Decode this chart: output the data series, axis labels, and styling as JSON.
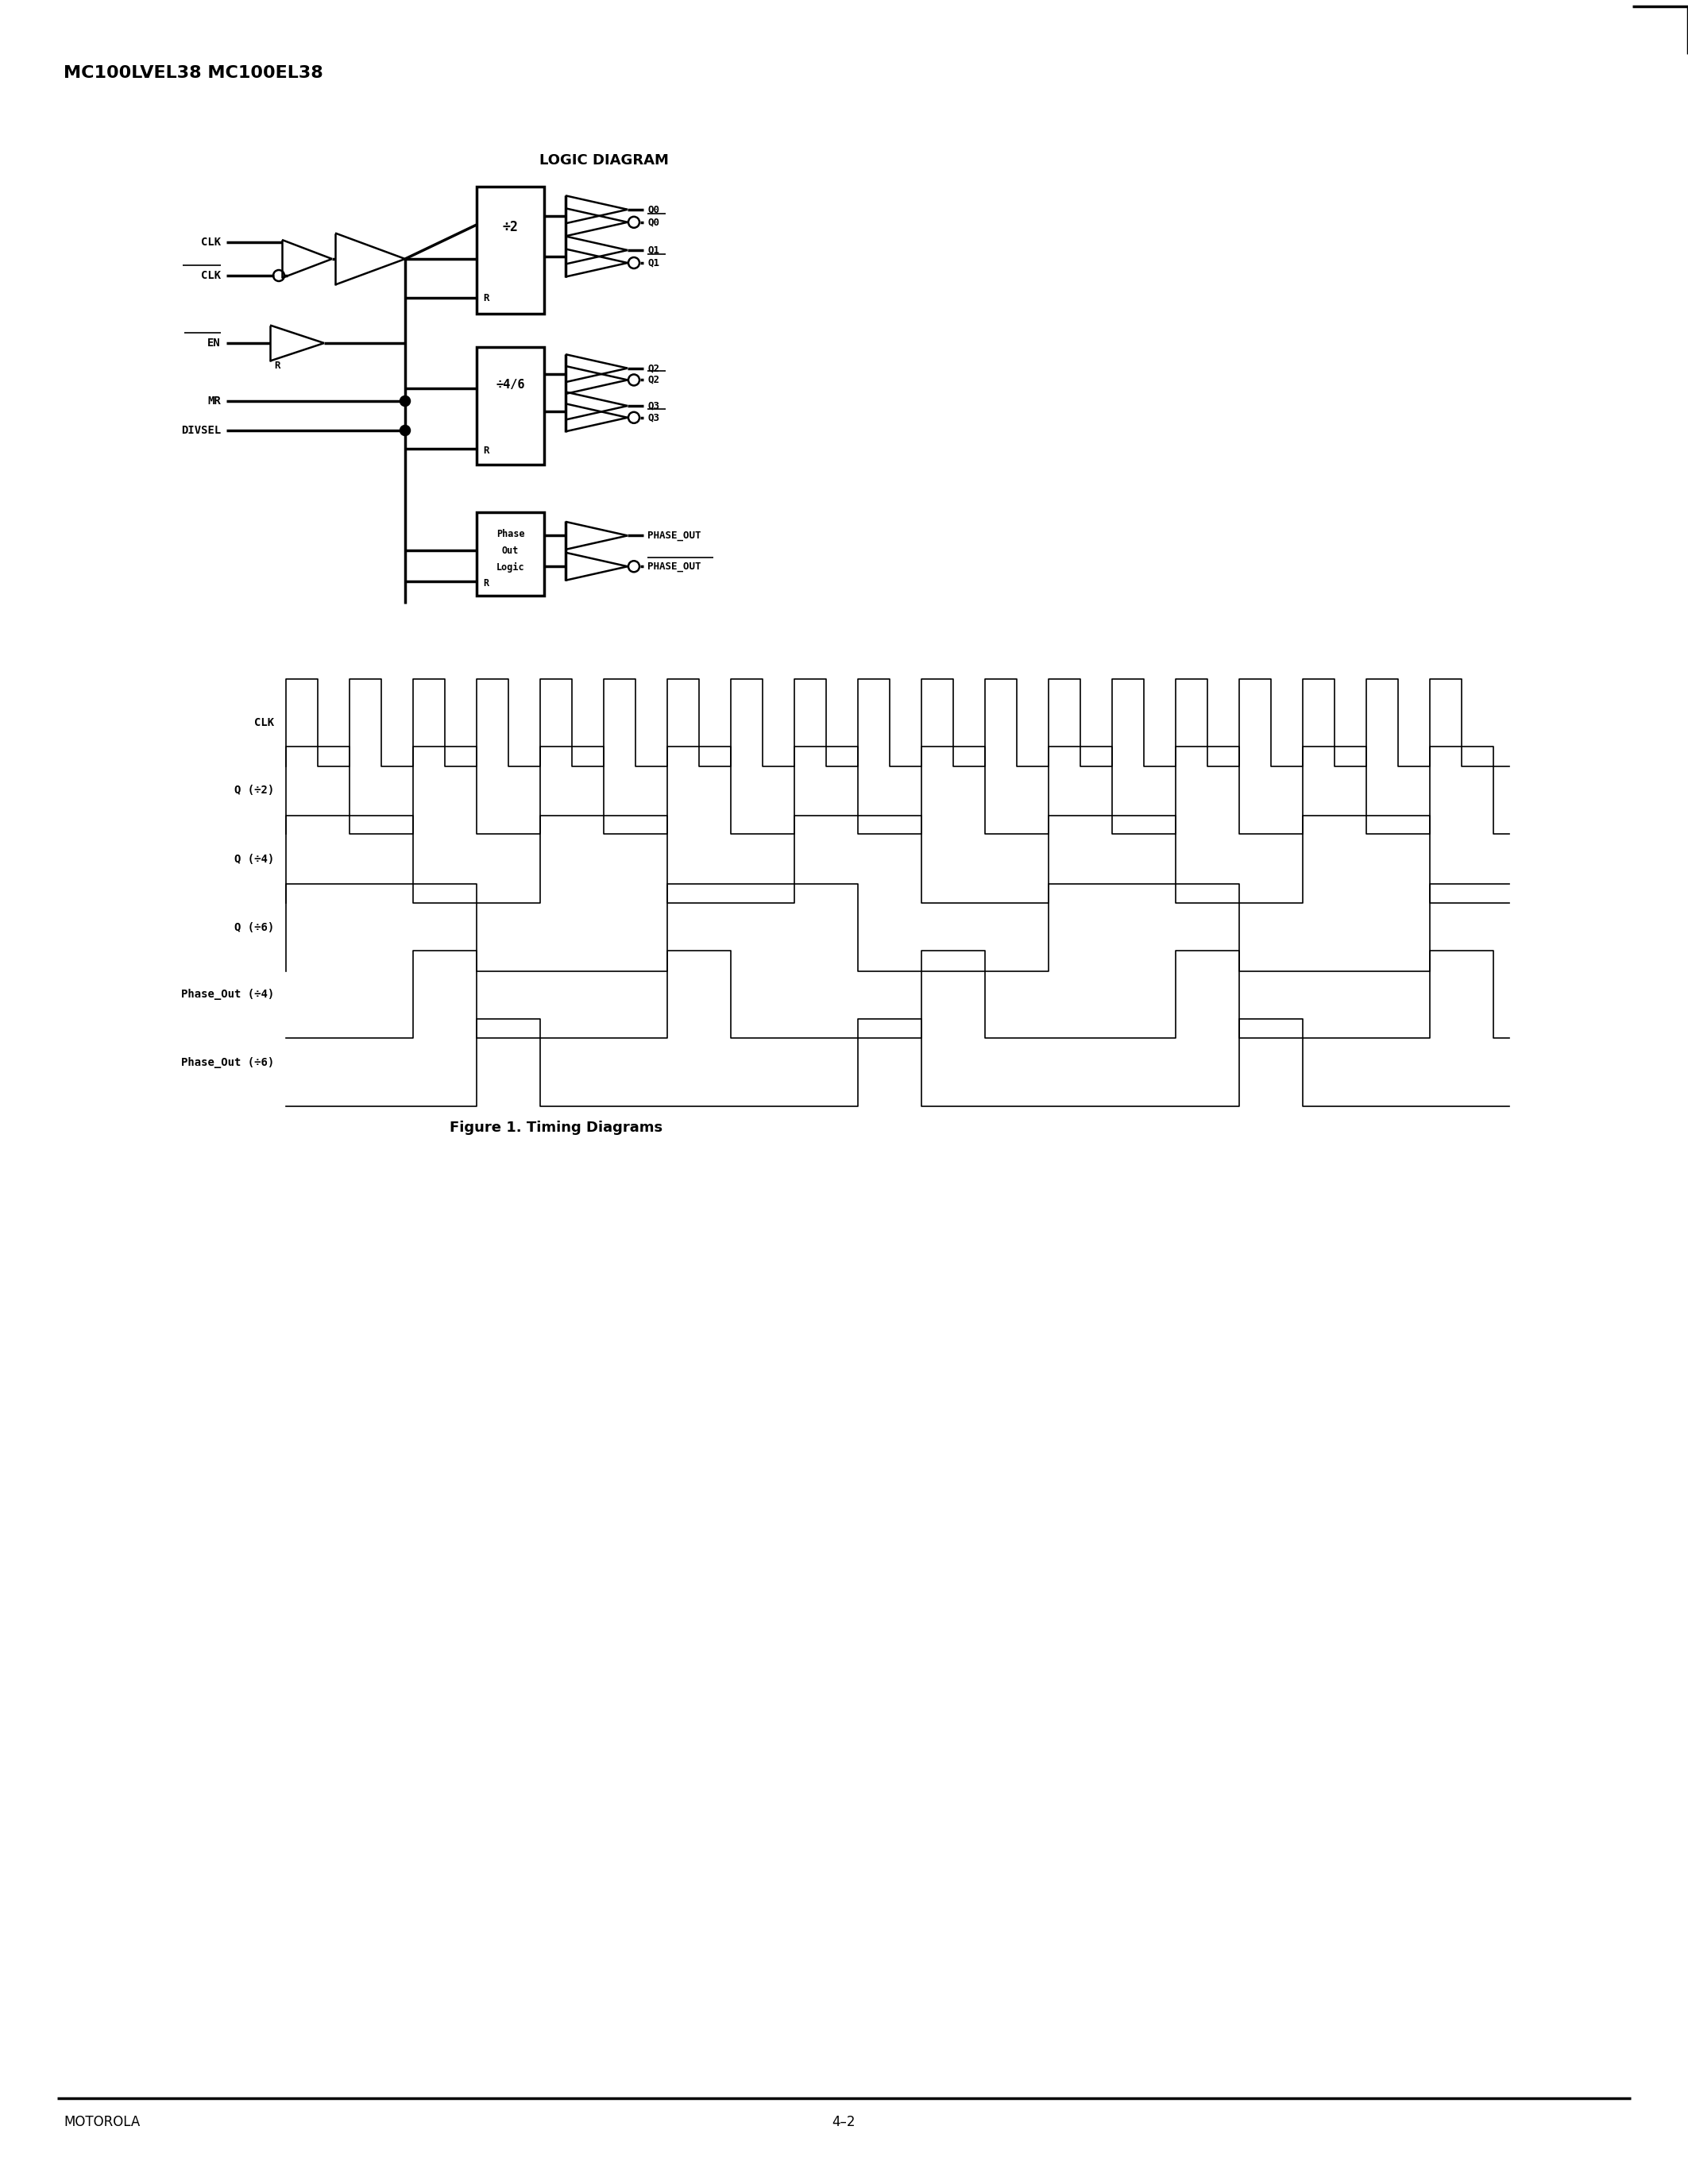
{
  "page_title": "MC100LVEL38 MC100EL38",
  "logic_diagram_title": "LOGIC DIAGRAM",
  "figure_caption": "Figure 1. Timing Diagrams",
  "footer_left": "MOTOROLA",
  "footer_center": "4–2",
  "bg_color": "#ffffff",
  "line_color": "#000000",
  "timing_labels": [
    "CLK",
    "Q (÷2)",
    "Q (÷4)",
    "Q (÷6)",
    "Phase_Out (÷4)",
    "Phase_Out (÷6)"
  ]
}
